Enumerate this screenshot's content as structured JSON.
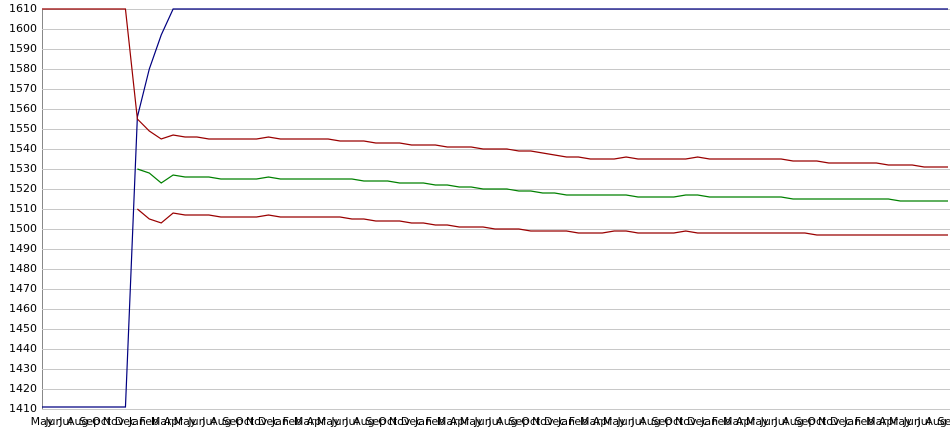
{
  "chart_data": {
    "type": "line",
    "categories": [
      "May",
      "Jun",
      "Jul",
      "Aug",
      "Sep",
      "Oct",
      "Nov",
      "Dec",
      "Jan",
      "Feb",
      "Mar",
      "Apr",
      "May",
      "Jun",
      "Jul",
      "Aug",
      "Sep",
      "Oct",
      "Nov",
      "Dec",
      "Jan",
      "Feb",
      "Mar",
      "Apr",
      "May",
      "Jun",
      "Jul",
      "Aug",
      "Sep",
      "Oct",
      "Nov",
      "Dec",
      "Jan",
      "Feb",
      "Mar",
      "Apr",
      "May",
      "Jun",
      "Jul",
      "Aug",
      "Sep",
      "Oct",
      "Nov",
      "Dec",
      "Jan",
      "Feb",
      "Mar",
      "Apr",
      "May",
      "Jun",
      "Jul",
      "Aug",
      "Sep",
      "Oct",
      "Nov",
      "Dec",
      "Jan",
      "Feb",
      "Mar",
      "Apr",
      "May",
      "Jun",
      "Jul",
      "Aug",
      "Sep",
      "Oct",
      "Nov",
      "Dec",
      "Jan",
      "Feb",
      "Mar",
      "Apr",
      "May",
      "Jun",
      "Jul",
      "Aug",
      "Sep"
    ],
    "series": [
      {
        "color": "#000080",
        "values": [
          1411,
          1411,
          1411,
          1411,
          1411,
          1411,
          1411,
          1411,
          1556,
          1580,
          1597,
          1610,
          1610,
          1610,
          1610,
          1610,
          1610,
          1610,
          1610,
          1610,
          1610,
          1610,
          1610,
          1610,
          1610,
          1610,
          1610,
          1610,
          1610,
          1610,
          1610,
          1610,
          1610,
          1610,
          1610,
          1610,
          1610,
          1610,
          1610,
          1610,
          1610,
          1610,
          1610,
          1610,
          1610,
          1610,
          1610,
          1610,
          1610,
          1610,
          1610,
          1610,
          1610,
          1610,
          1610,
          1610,
          1610,
          1610,
          1610,
          1610,
          1610,
          1610,
          1610,
          1610,
          1610,
          1610,
          1610,
          1610,
          1610,
          1610,
          1610,
          1610,
          1610,
          1610,
          1610,
          1610,
          1610
        ]
      },
      {
        "color": "#990000",
        "values": [
          1610,
          1610,
          1610,
          1610,
          1610,
          1610,
          1610,
          1610,
          1555,
          1549,
          1545,
          1547,
          1546,
          1546,
          1545,
          1545,
          1545,
          1545,
          1545,
          1546,
          1545,
          1545,
          1545,
          1545,
          1545,
          1544,
          1544,
          1544,
          1543,
          1543,
          1543,
          1542,
          1542,
          1542,
          1541,
          1541,
          1541,
          1540,
          1540,
          1540,
          1539,
          1539,
          1538,
          1537,
          1536,
          1536,
          1535,
          1535,
          1535,
          1536,
          1535,
          1535,
          1535,
          1535,
          1535,
          1536,
          1535,
          1535,
          1535,
          1535,
          1535,
          1535,
          1535,
          1534,
          1534,
          1534,
          1533,
          1533,
          1533,
          1533,
          1533,
          1532,
          1532,
          1532,
          1531,
          1531,
          1531
        ]
      },
      {
        "color": "#008000",
        "values": [
          null,
          null,
          null,
          null,
          null,
          null,
          null,
          null,
          1530,
          1528,
          1523,
          1527,
          1526,
          1526,
          1526,
          1525,
          1525,
          1525,
          1525,
          1526,
          1525,
          1525,
          1525,
          1525,
          1525,
          1525,
          1525,
          1524,
          1524,
          1524,
          1523,
          1523,
          1523,
          1522,
          1522,
          1521,
          1521,
          1520,
          1520,
          1520,
          1519,
          1519,
          1518,
          1518,
          1517,
          1517,
          1517,
          1517,
          1517,
          1517,
          1516,
          1516,
          1516,
          1516,
          1517,
          1517,
          1516,
          1516,
          1516,
          1516,
          1516,
          1516,
          1516,
          1515,
          1515,
          1515,
          1515,
          1515,
          1515,
          1515,
          1515,
          1515,
          1514,
          1514,
          1514,
          1514,
          1514
        ]
      },
      {
        "color": "#990000",
        "values": [
          null,
          null,
          null,
          null,
          null,
          null,
          null,
          null,
          1510,
          1505,
          1503,
          1508,
          1507,
          1507,
          1507,
          1506,
          1506,
          1506,
          1506,
          1507,
          1506,
          1506,
          1506,
          1506,
          1506,
          1506,
          1505,
          1505,
          1504,
          1504,
          1504,
          1503,
          1503,
          1502,
          1502,
          1501,
          1501,
          1501,
          1500,
          1500,
          1500,
          1499,
          1499,
          1499,
          1499,
          1498,
          1498,
          1498,
          1499,
          1499,
          1498,
          1498,
          1498,
          1498,
          1499,
          1498,
          1498,
          1498,
          1498,
          1498,
          1498,
          1498,
          1498,
          1498,
          1498,
          1497,
          1497,
          1497,
          1497,
          1497,
          1497,
          1497,
          1497,
          1497,
          1497,
          1497,
          1497
        ]
      }
    ],
    "ylim": [
      1410,
      1610
    ],
    "yticks": [
      1410,
      1420,
      1430,
      1440,
      1450,
      1460,
      1470,
      1480,
      1490,
      1500,
      1510,
      1520,
      1530,
      1540,
      1550,
      1560,
      1570,
      1580,
      1590,
      1600,
      1610
    ],
    "grid": true
  }
}
